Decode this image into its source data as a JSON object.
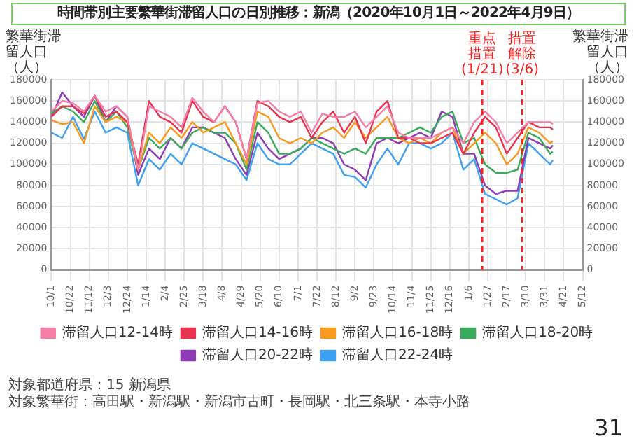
{
  "chart_data": {
    "type": "line",
    "title": "時間帯別主要繁華街滞留人口の日別推移：新潟（2020年10月1日～2022年4月9日）",
    "ylabel": "繁華街滞留人口（人）",
    "y2label": "繁華街滞留人口（人）",
    "x": [
      "2020-10-01",
      "2020-10-13",
      "2020-10-25",
      "2020-11-06",
      "2020-11-18",
      "2020-11-30",
      "2020-12-12",
      "2020-12-24",
      "2021-01-05",
      "2021-01-17",
      "2021-01-29",
      "2021-02-10",
      "2021-02-22",
      "2021-03-06",
      "2021-03-18",
      "2021-03-30",
      "2021-04-11",
      "2021-04-23",
      "2021-05-05",
      "2021-05-17",
      "2021-05-29",
      "2021-06-10",
      "2021-06-22",
      "2021-07-04",
      "2021-07-16",
      "2021-07-28",
      "2021-08-09",
      "2021-08-21",
      "2021-09-02",
      "2021-09-14",
      "2021-09-26",
      "2021-10-08",
      "2021-10-20",
      "2021-11-01",
      "2021-11-13",
      "2021-11-25",
      "2021-12-07",
      "2021-12-19",
      "2021-12-31",
      "2022-01-12",
      "2022-01-24",
      "2022-02-05",
      "2022-02-17",
      "2022-03-01",
      "2022-03-13",
      "2022-03-25",
      "2022-04-06",
      "2022-04-09"
    ],
    "series": [
      {
        "name": "滞留人口12-14時",
        "color": "#f47fa8",
        "values": [
          150000,
          160000,
          158000,
          150000,
          165000,
          150000,
          155000,
          145000,
          95000,
          155000,
          150000,
          145000,
          135000,
          163000,
          150000,
          140000,
          155000,
          140000,
          105000,
          158000,
          160000,
          150000,
          145000,
          150000,
          130000,
          148000,
          145000,
          145000,
          150000,
          135000,
          145000,
          155000,
          130000,
          125000,
          125000,
          125000,
          130000,
          135000,
          120000,
          140000,
          150000,
          140000,
          120000,
          130000,
          140000,
          140000,
          140000,
          138000
        ]
      },
      {
        "name": "滞留人口14-16時",
        "color": "#e8324f",
        "values": [
          145000,
          155000,
          155000,
          148000,
          165000,
          145000,
          150000,
          140000,
          100000,
          160000,
          145000,
          140000,
          130000,
          160000,
          145000,
          140000,
          155000,
          140000,
          105000,
          160000,
          155000,
          145000,
          140000,
          145000,
          125000,
          140000,
          150000,
          130000,
          145000,
          120000,
          150000,
          160000,
          125000,
          125000,
          120000,
          120000,
          125000,
          130000,
          110000,
          130000,
          145000,
          135000,
          110000,
          125000,
          140000,
          135000,
          135000,
          133000
        ]
      },
      {
        "name": "滞留人口16-18時",
        "color": "#f79a1e",
        "values": [
          142000,
          138000,
          140000,
          120000,
          155000,
          140000,
          145000,
          140000,
          95000,
          130000,
          120000,
          135000,
          125000,
          140000,
          130000,
          135000,
          140000,
          120000,
          100000,
          150000,
          145000,
          125000,
          120000,
          125000,
          120000,
          130000,
          135000,
          125000,
          140000,
          125000,
          135000,
          145000,
          125000,
          120000,
          125000,
          120000,
          130000,
          135000,
          110000,
          120000,
          130000,
          120000,
          100000,
          110000,
          135000,
          130000,
          120000,
          122000
        ]
      },
      {
        "name": "滞留人口18-20時",
        "color": "#3aaa5c",
        "values": [
          148000,
          155000,
          150000,
          140000,
          160000,
          140000,
          150000,
          135000,
          95000,
          125000,
          115000,
          125000,
          115000,
          130000,
          135000,
          130000,
          130000,
          120000,
          95000,
          140000,
          130000,
          110000,
          110000,
          115000,
          125000,
          120000,
          115000,
          110000,
          115000,
          110000,
          125000,
          125000,
          125000,
          130000,
          135000,
          130000,
          145000,
          150000,
          120000,
          125000,
          100000,
          92000,
          92000,
          95000,
          130000,
          125000,
          110000,
          112000
        ]
      },
      {
        "name": "滞留人口20-22時",
        "color": "#8e3bb5",
        "values": [
          145000,
          168000,
          155000,
          145000,
          165000,
          140000,
          155000,
          145000,
          90000,
          115000,
          105000,
          125000,
          115000,
          135000,
          135000,
          130000,
          125000,
          105000,
          90000,
          130000,
          115000,
          105000,
          110000,
          115000,
          125000,
          125000,
          120000,
          100000,
          95000,
          85000,
          120000,
          125000,
          120000,
          125000,
          130000,
          125000,
          150000,
          145000,
          110000,
          110000,
          80000,
          72000,
          75000,
          75000,
          125000,
          120000,
          115000,
          118000
        ]
      },
      {
        "name": "滞留人口22-24時",
        "color": "#3ea0f0",
        "values": [
          130000,
          125000,
          145000,
          124000,
          150000,
          130000,
          135000,
          130000,
          80000,
          105000,
          95000,
          110000,
          100000,
          120000,
          115000,
          110000,
          105000,
          100000,
          85000,
          120000,
          105000,
          100000,
          100000,
          110000,
          120000,
          115000,
          110000,
          90000,
          88000,
          78000,
          100000,
          115000,
          100000,
          120000,
          120000,
          115000,
          120000,
          130000,
          95000,
          105000,
          72000,
          67000,
          62000,
          68000,
          120000,
          110000,
          100000,
          104000
        ]
      }
    ],
    "xlim": [
      "2020-10-01",
      "2022-05-12"
    ],
    "xticks": [
      {
        "value": "2020-10-01",
        "label": "10/1"
      },
      {
        "value": "2020-10-22",
        "label": "10/22"
      },
      {
        "value": "2020-11-12",
        "label": "11/12"
      },
      {
        "value": "2020-12-03",
        "label": "12/3"
      },
      {
        "value": "2020-12-24",
        "label": "12/24"
      },
      {
        "value": "2021-01-14",
        "label": "1/14"
      },
      {
        "value": "2021-02-04",
        "label": "2/4"
      },
      {
        "value": "2021-02-25",
        "label": "2/25"
      },
      {
        "value": "2021-03-18",
        "label": "3/18"
      },
      {
        "value": "2021-04-08",
        "label": "4/8"
      },
      {
        "value": "2021-04-29",
        "label": "4/29"
      },
      {
        "value": "2021-05-20",
        "label": "5/20"
      },
      {
        "value": "2021-06-10",
        "label": "6/10"
      },
      {
        "value": "2021-07-01",
        "label": "7/1"
      },
      {
        "value": "2021-07-22",
        "label": "7/22"
      },
      {
        "value": "2021-08-12",
        "label": "8/12"
      },
      {
        "value": "2021-09-02",
        "label": "9/2"
      },
      {
        "value": "2021-09-23",
        "label": "9/23"
      },
      {
        "value": "2021-10-14",
        "label": "10/14"
      },
      {
        "value": "2021-11-04",
        "label": "11/4"
      },
      {
        "value": "2021-11-25",
        "label": "11/25"
      },
      {
        "value": "2021-12-16",
        "label": "12/16"
      },
      {
        "value": "2022-01-06",
        "label": "1/6"
      },
      {
        "value": "2022-01-27",
        "label": "1/27"
      },
      {
        "value": "2022-02-17",
        "label": "2/17"
      },
      {
        "value": "2022-03-10",
        "label": "3/10"
      },
      {
        "value": "2022-03-31",
        "label": "3/31"
      },
      {
        "value": "2022-04-21",
        "label": "4/21"
      },
      {
        "value": "2022-05-12",
        "label": "5/12"
      }
    ],
    "ylim": [
      0,
      180000
    ],
    "yticks": [
      0,
      20000,
      40000,
      60000,
      80000,
      100000,
      120000,
      140000,
      160000,
      180000
    ],
    "y2lim": [
      0,
      180000
    ],
    "y2ticks": [
      0,
      20000,
      40000,
      60000,
      80000,
      100000,
      120000,
      140000,
      160000,
      180000
    ],
    "ref_lines": [
      {
        "axis": "x",
        "value": "2022-01-21",
        "label": "重点措置(1/21)",
        "color": "#ff2020",
        "line_style": "dashed"
      },
      {
        "axis": "x",
        "value": "2022-03-06",
        "label": "措置解除(3/6)",
        "color": "#ff2020",
        "line_style": "dashed"
      }
    ],
    "grid": true,
    "legend": "bottom",
    "marker": "none",
    "annotations": [
      "対象都道府県：15 新潟県",
      "対象繁華街：高田駅・新潟駅・新潟市古町・長岡駅・北三条駅・本寺小路",
      "31"
    ]
  }
}
